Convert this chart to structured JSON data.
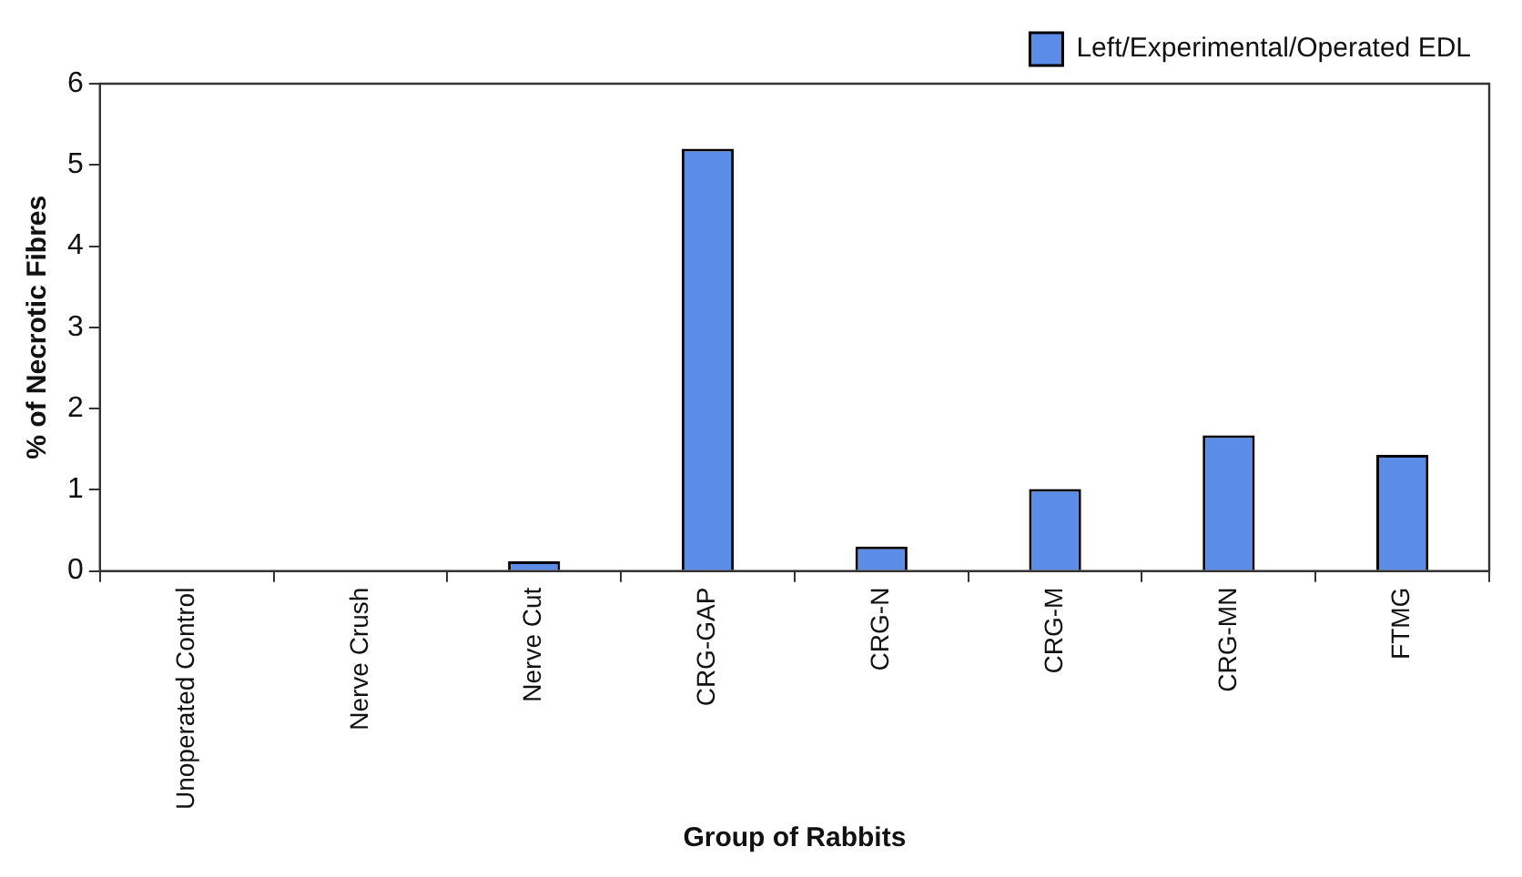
{
  "chart_data": {
    "type": "bar",
    "xlabel": "Group of Rabbits",
    "ylabel": "% of Necrotic Fibres",
    "categories": [
      "Unoperated Control",
      "Nerve Crush",
      "Nerve Cut",
      "CRG-GAP",
      "CRG-N",
      "CRG-M",
      "CRG-MN",
      "FTMG"
    ],
    "series": [
      {
        "name": "Left/Experimental/Operated EDL",
        "color": "#5b8ce8",
        "values": [
          0,
          0,
          0.12,
          5.2,
          0.3,
          1.01,
          1.67,
          1.43
        ]
      }
    ],
    "ylim": [
      0,
      6
    ],
    "yticks": [
      0,
      1,
      2,
      3,
      4,
      5,
      6
    ],
    "grid": false,
    "legend": "top right"
  }
}
